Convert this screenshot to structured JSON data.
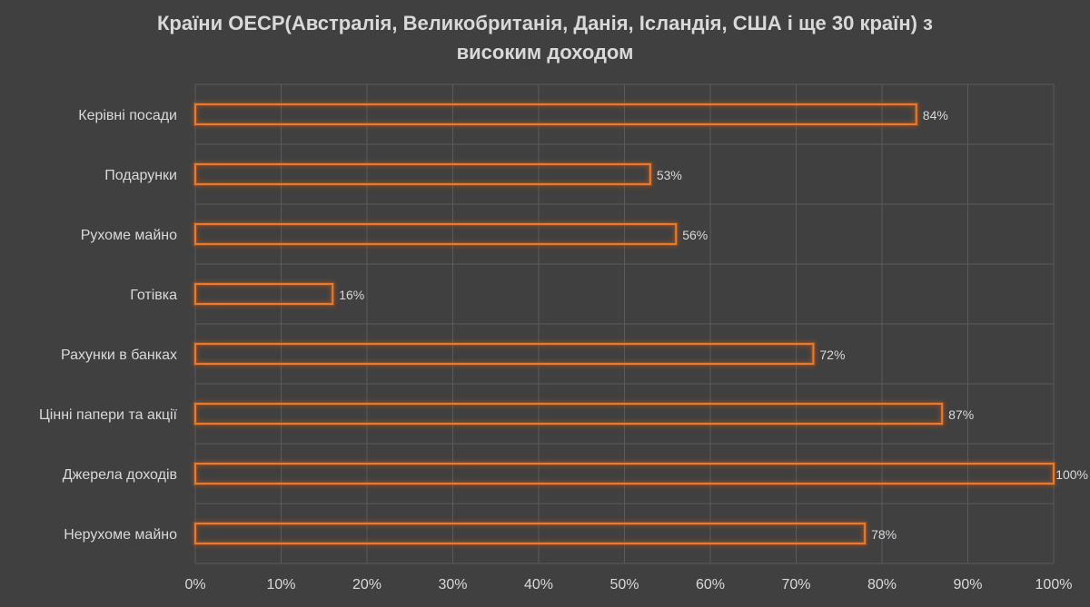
{
  "chart_data": {
    "type": "bar",
    "orientation": "horizontal",
    "title": "Країни ОЕСР(Австралія, Великобританія, Данія, Ісландія, США і ще 30 країн) з високим доходом",
    "title_lines": [
      "Країни ОЕСР(Австралія, Великобританія, Данія, Ісландія, США і ще 30 країн) з",
      "високим доходом"
    ],
    "categories": [
      "Керівні посади",
      "Подарунки",
      "Рухоме майно",
      "Готівка",
      "Рахунки в банках",
      "Цінні папери та акції",
      "Джерела доходів",
      "Нерухоме майно"
    ],
    "values": [
      84,
      53,
      56,
      16,
      72,
      87,
      100,
      78
    ],
    "data_labels": [
      "84%",
      "53%",
      "56%",
      "16%",
      "72%",
      "87%",
      "100%",
      "78%"
    ],
    "x_ticks": [
      "0%",
      "10%",
      "20%",
      "30%",
      "40%",
      "50%",
      "60%",
      "70%",
      "80%",
      "90%",
      "100%"
    ],
    "xlim": [
      0,
      100
    ],
    "grid": true,
    "legend": "none",
    "colors": {
      "background": "#404040",
      "bar_outline": "#e87a2a",
      "bar_glow": "#c0581a",
      "grid": "#5a5a5a",
      "text": "#d9d9d9"
    }
  }
}
